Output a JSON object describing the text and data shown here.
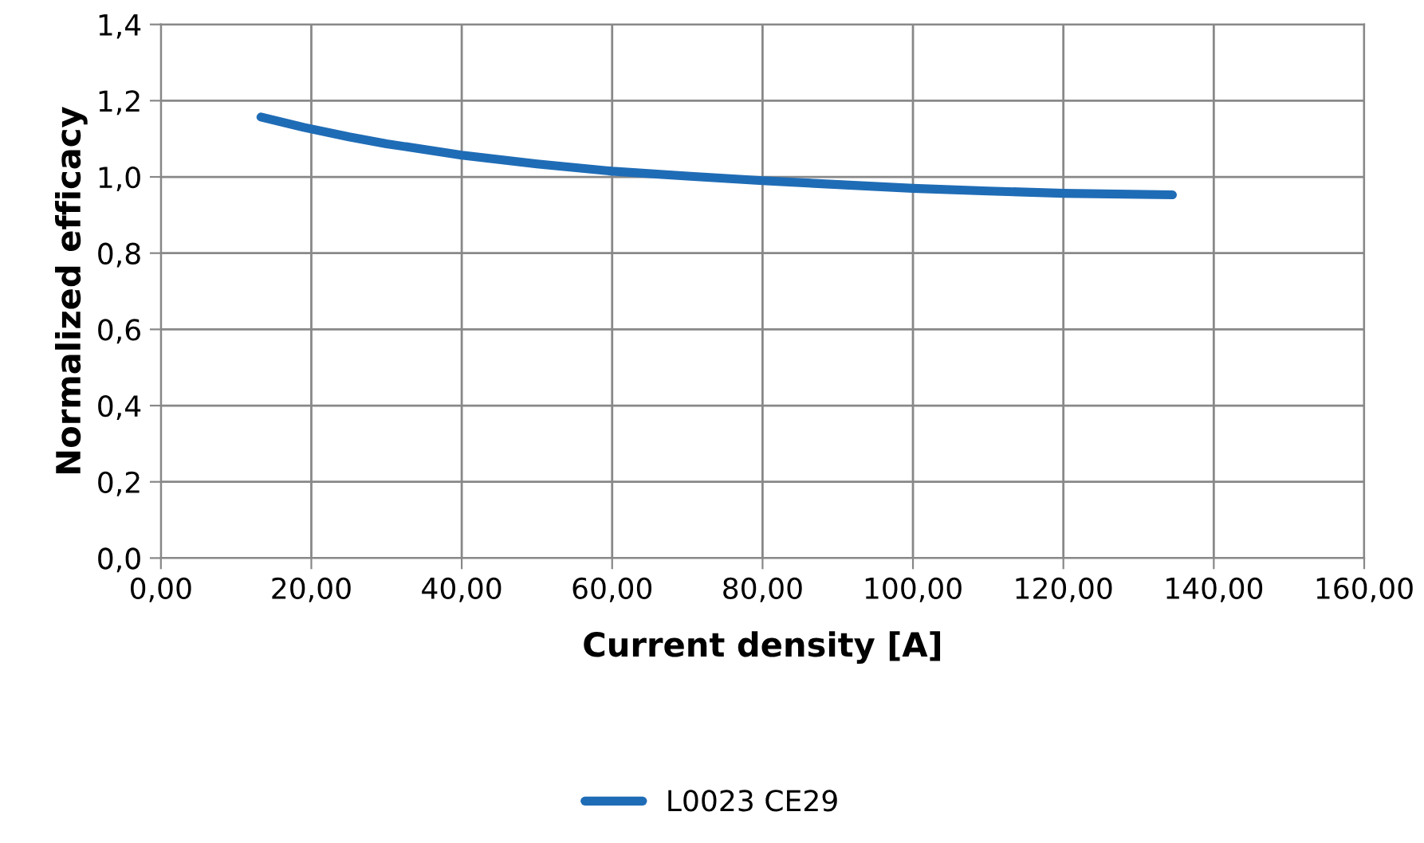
{
  "chart_data": {
    "type": "line",
    "xlabel": "Current density [A]",
    "ylabel": "Normalized efficacy",
    "series": [
      {
        "name": "L0023 CE29",
        "color": "#1f6cb6",
        "x": [
          13.3,
          19,
          25,
          30,
          40,
          50,
          60,
          70,
          80,
          90,
          100,
          110,
          120,
          134.5
        ],
        "values": [
          1.157,
          1.13,
          1.105,
          1.087,
          1.057,
          1.034,
          1.015,
          1.002,
          0.99,
          0.98,
          0.97,
          0.963,
          0.957,
          0.953
        ]
      }
    ],
    "xlim": [
      0,
      160
    ],
    "xticks": [
      {
        "value": 0,
        "label": "0,00"
      },
      {
        "value": 20,
        "label": "20,00"
      },
      {
        "value": 40,
        "label": "40,00"
      },
      {
        "value": 60,
        "label": "60,00"
      },
      {
        "value": 80,
        "label": "80,00"
      },
      {
        "value": 100,
        "label": "100,00"
      },
      {
        "value": 120,
        "label": "120,00"
      },
      {
        "value": 140,
        "label": "140,00"
      },
      {
        "value": 160,
        "label": "160,00"
      }
    ],
    "ylim": [
      0,
      1.4
    ],
    "yticks": [
      {
        "value": 0,
        "label": "0,0"
      },
      {
        "value": 0.2,
        "label": "0,2"
      },
      {
        "value": 0.4,
        "label": "0,4"
      },
      {
        "value": 0.6,
        "label": "0,6"
      },
      {
        "value": 0.8,
        "label": "0,8"
      },
      {
        "value": 1.0,
        "label": "1,0"
      },
      {
        "value": 1.2,
        "label": "1,2"
      },
      {
        "value": 1.4,
        "label": "1,4"
      }
    ],
    "grid": true,
    "legend": "bottom",
    "marker": "none",
    "line_style": "solid"
  }
}
